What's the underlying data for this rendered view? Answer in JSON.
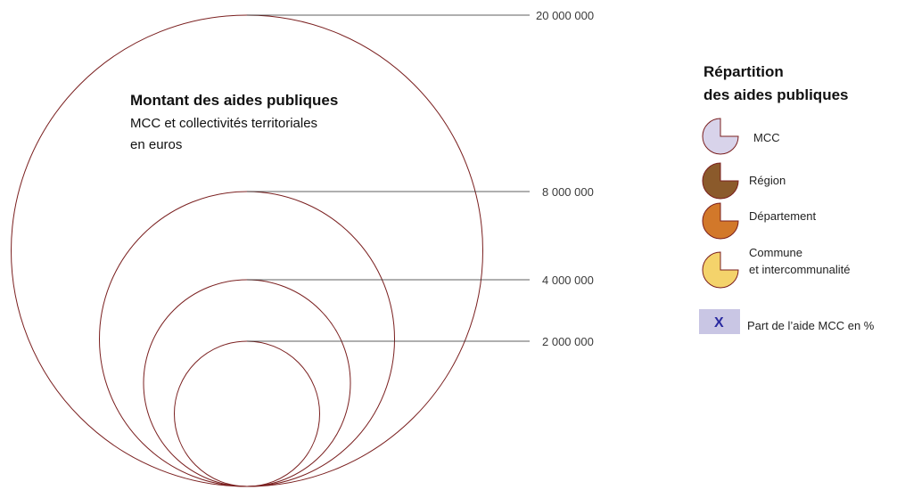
{
  "title": {
    "heading": "Montant des aides publiques",
    "line1": "MCC et collectivités territoriales",
    "line2": "en euros"
  },
  "scale": {
    "circle_color": "#7a1f1f",
    "circles": [
      {
        "label": "20 000 000"
      },
      {
        "label": "8 000 000"
      },
      {
        "label": "4 000 000"
      },
      {
        "label": "2 000 000"
      }
    ]
  },
  "legend": {
    "title_line1": "Répartition",
    "title_line2": "des aides publiques",
    "items": [
      {
        "label": "MCC",
        "color": "#d8d3ea"
      },
      {
        "label": "Région",
        "color": "#8b5a2b"
      },
      {
        "label": "Département",
        "color": "#d2782a"
      },
      {
        "label_line1": "Commune",
        "label_line2": "et intercommunalité",
        "color": "#f4d36b"
      }
    ],
    "badge": {
      "symbol": "X",
      "label": "Part de l’aide  MCC en %",
      "color": "#c9c6e4"
    }
  }
}
